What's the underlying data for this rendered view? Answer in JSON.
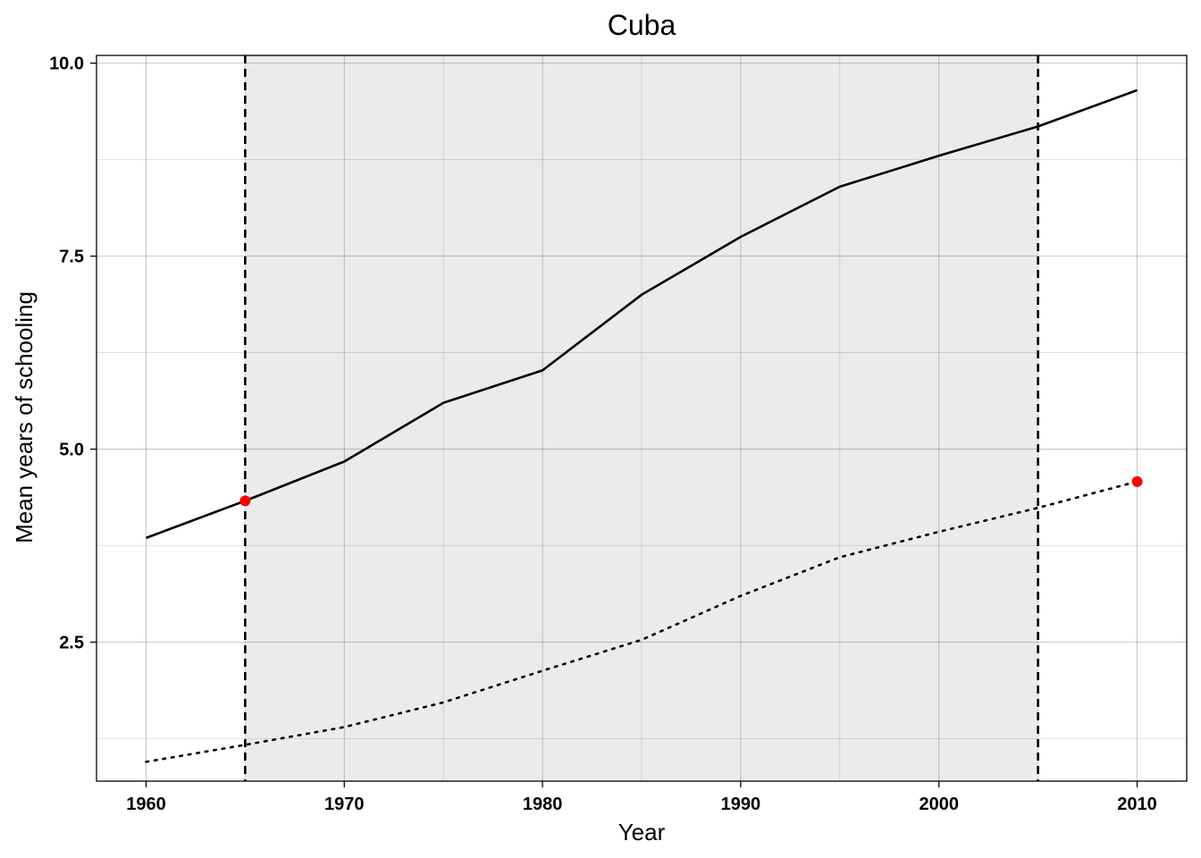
{
  "chart_data": {
    "type": "line",
    "title": "Cuba",
    "xlabel": "Year",
    "ylabel": "Mean years of schooling",
    "xlim": [
      1957.5,
      2012.5
    ],
    "ylim": [
      0.7,
      10.1
    ],
    "x_ticks": [
      1960,
      1970,
      1980,
      1990,
      2000,
      2010
    ],
    "y_ticks": [
      2.5,
      5.0,
      7.5,
      10.0
    ],
    "y_tick_labels": [
      "2.5",
      "5.0",
      "7.5",
      "10.0"
    ],
    "shaded_region": {
      "x_start": 1965,
      "x_end": 2005,
      "color": "#ebebeb"
    },
    "vertical_lines": [
      1965,
      2005
    ],
    "grid": true,
    "series": [
      {
        "style": "solid",
        "color": "#000000",
        "x": [
          1960,
          1965,
          1970,
          1975,
          1980,
          1985,
          1990,
          1995,
          2000,
          2005,
          2010
        ],
        "values": [
          3.85,
          4.33,
          4.84,
          5.6,
          6.02,
          7.0,
          7.75,
          8.4,
          8.8,
          9.18,
          9.65
        ]
      },
      {
        "style": "dotted",
        "color": "#000000",
        "x": [
          1960,
          1965,
          1970,
          1975,
          1980,
          1985,
          1990,
          1995,
          2000,
          2005,
          2010
        ],
        "values": [
          0.95,
          1.17,
          1.4,
          1.72,
          2.13,
          2.53,
          3.1,
          3.6,
          3.93,
          4.24,
          4.58
        ]
      }
    ],
    "highlight_points": [
      {
        "x": 1965,
        "y": 4.33,
        "color": "#ff0000"
      },
      {
        "x": 2010,
        "y": 4.58,
        "color": "#ff0000"
      }
    ]
  }
}
